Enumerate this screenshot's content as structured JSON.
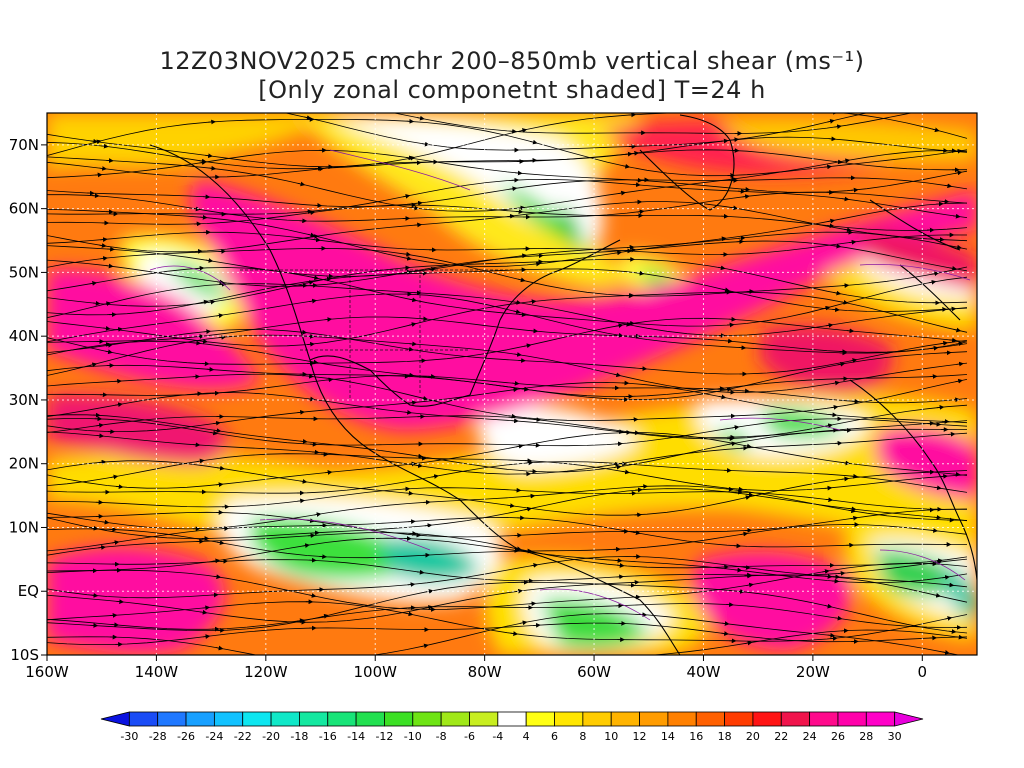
{
  "title": {
    "line1": "12Z03NOV2025 cmchr 200–850mb vertical shear (ms⁻¹)",
    "line2": "[Only zonal componetnt shaded] T=24 h"
  },
  "map": {
    "lon_range": [
      -160,
      10
    ],
    "lat_range": [
      -10,
      75
    ],
    "lon_ticks": [
      {
        "value": -160,
        "label": "160W"
      },
      {
        "value": -140,
        "label": "140W"
      },
      {
        "value": -120,
        "label": "120W"
      },
      {
        "value": -100,
        "label": "100W"
      },
      {
        "value": -80,
        "label": "80W"
      },
      {
        "value": -60,
        "label": "60W"
      },
      {
        "value": -40,
        "label": "40W"
      },
      {
        "value": -20,
        "label": "20W"
      },
      {
        "value": 0,
        "label": "0"
      }
    ],
    "lat_ticks": [
      {
        "value": 70,
        "label": "70N"
      },
      {
        "value": 60,
        "label": "60N"
      },
      {
        "value": 50,
        "label": "50N"
      },
      {
        "value": 40,
        "label": "40N"
      },
      {
        "value": 30,
        "label": "30N"
      },
      {
        "value": 20,
        "label": "20N"
      },
      {
        "value": 10,
        "label": "10N"
      },
      {
        "value": 0,
        "label": "EQ"
      },
      {
        "value": -10,
        "label": "10S"
      }
    ]
  },
  "colorbar": {
    "levels": [
      "-30",
      "-28",
      "-26",
      "-24",
      "-22",
      "-20",
      "-18",
      "-16",
      "-14",
      "-12",
      "-10",
      "-8",
      "-6",
      "-4",
      "4",
      "6",
      "8",
      "10",
      "12",
      "14",
      "16",
      "18",
      "20",
      "22",
      "24",
      "26",
      "28",
      "30"
    ],
    "colors": [
      "#0a12e0",
      "#1a4cf6",
      "#1f78ff",
      "#18a0ff",
      "#12c2ff",
      "#0ee6f0",
      "#10e8c8",
      "#14e8a0",
      "#18e478",
      "#22e050",
      "#3ce024",
      "#6ee414",
      "#a0e818",
      "#c8ee20",
      "#ffffff",
      "#ffff14",
      "#ffe600",
      "#ffcc00",
      "#ffb400",
      "#ff9c00",
      "#ff8000",
      "#ff6000",
      "#ff3c00",
      "#ff1414",
      "#f0144c",
      "#ff0a8c",
      "#ff00aa",
      "#ff00c8",
      "#e800dc"
    ]
  }
}
